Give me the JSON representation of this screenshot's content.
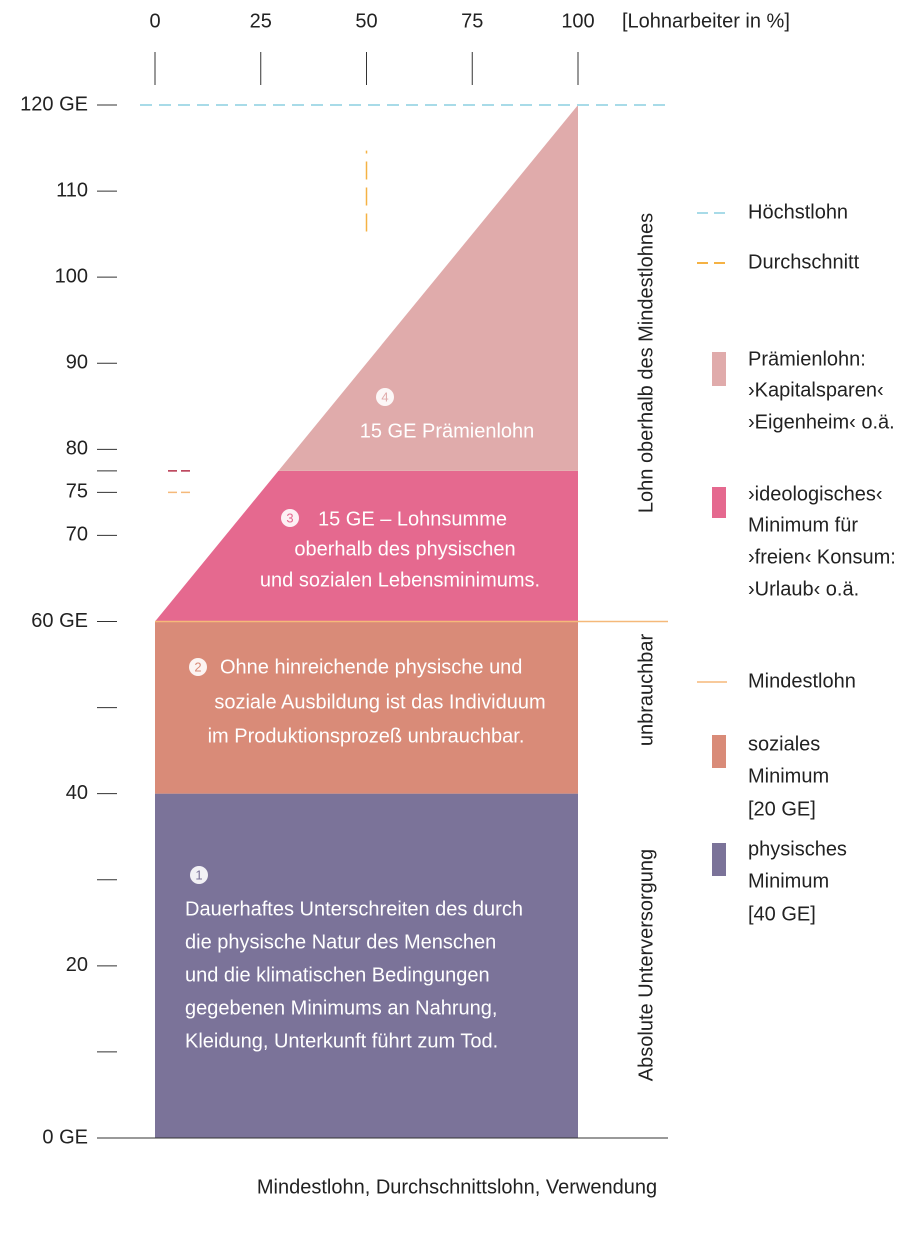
{
  "x_axis": {
    "xlim": [
      0,
      100
    ],
    "xticks": [
      0,
      25,
      50,
      75,
      100
    ],
    "label": "[Lohnarbeiter in %]"
  },
  "y_axis": {
    "ylim": [
      0,
      120
    ],
    "yticks": [
      {
        "value": 120,
        "label": "120 GE"
      },
      {
        "value": 110,
        "label": "110"
      },
      {
        "value": 100,
        "label": "100"
      },
      {
        "value": 90,
        "label": "90"
      },
      {
        "value": 80,
        "label": "80"
      },
      {
        "value": 77.5,
        "label": null
      },
      {
        "value": 75,
        "label": "75"
      },
      {
        "value": 70,
        "label": "70"
      },
      {
        "value": 60,
        "label": "60 GE"
      },
      {
        "value": 50,
        "label": null
      },
      {
        "value": 40,
        "label": "40"
      },
      {
        "value": 30,
        "label": null
      },
      {
        "value": 20,
        "label": "20"
      },
      {
        "value": 10,
        "label": null
      },
      {
        "value": 0,
        "label": "0 GE"
      }
    ]
  },
  "regions": [
    {
      "from": 0,
      "to": 40,
      "color": "#7b7399",
      "number": "1",
      "text": [
        "Dauerhaftes Unterschreiten des durch",
        "die physische Natur des Menschen",
        "und die klimatischen Bedingungen",
        "gegebenen Minimums an Nahrung,",
        "Kleidung, Unterkunft führt zum Tod."
      ]
    },
    {
      "from": 40,
      "to": 60,
      "color": "#d98b78",
      "number": "2",
      "text": [
        "Ohne hinreichende physische und",
        "soziale Ausbildung ist das Individuum",
        "im Produktionsprozeß unbrauchbar."
      ]
    },
    {
      "from": 60,
      "to": 77.5,
      "color": "#e5698f",
      "number": "3",
      "text": [
        "15 GE – Lohnsumme",
        "oberhalb des physischen",
        "und sozialen Lebensminimums."
      ]
    },
    {
      "from": 77.5,
      "to": 120,
      "color": "#e0abab",
      "number": "4",
      "text": [
        "15 GE Prämienlohn"
      ]
    }
  ],
  "hoechstlohn": {
    "value": 120,
    "color": "#a8dbe8"
  },
  "durchschnitt": {
    "x": 50,
    "from": 105.3,
    "to": 114.7,
    "color": "#f5b244"
  },
  "mindestlohn": {
    "value": 60,
    "color": "#f5b97a"
  },
  "markers": [
    {
      "value": 77.5,
      "color": "#b5304a"
    },
    {
      "value": 75,
      "color": "#f5b97a"
    }
  ],
  "side_labels": [
    "Lohn oberhalb des Mindestlohnes",
    "unbrauchbar",
    "Absolute Unterversorgung"
  ],
  "legend": [
    {
      "kind": "dash",
      "color": "#a8dbe8",
      "text": [
        "Höchstlohn"
      ]
    },
    {
      "kind": "dash",
      "color": "#f5b244",
      "text": [
        "Durchschnitt"
      ]
    },
    {
      "kind": "box",
      "color": "#e0abab",
      "text": [
        "Prämienlohn:",
        "›Kapitalsparen‹",
        "›Eigenheim‹ o.ä."
      ]
    },
    {
      "kind": "box",
      "color": "#e5698f",
      "text": [
        "›ideologisches‹",
        "Minimum für",
        "›freien‹ Konsum:",
        "›Urlaub‹ o.ä."
      ]
    },
    {
      "kind": "line",
      "color": "#f5b97a",
      "text": [
        "Mindestlohn"
      ]
    },
    {
      "kind": "box",
      "color": "#d98b78",
      "text": [
        "soziales",
        "Minimum",
        "[20 GE]"
      ]
    },
    {
      "kind": "box",
      "color": "#7b7399",
      "text": [
        "physisches",
        "Minimum",
        "[40 GE]"
      ]
    }
  ],
  "caption": "Mindestlohn, Durchschnittslohn, Verwendung"
}
